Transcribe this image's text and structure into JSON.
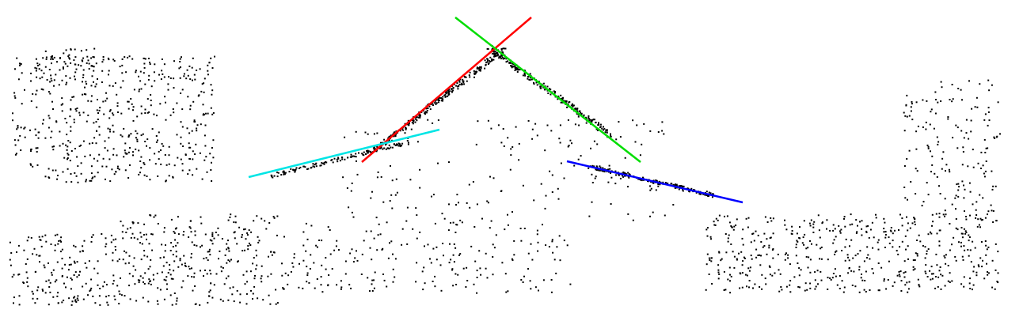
{
  "scene": {
    "background": "#ffffff",
    "point_color": "#000000",
    "description_type": "point-cloud-with-fitted-lines"
  },
  "lines": [
    {
      "id": "red",
      "color": "#ff0000"
    },
    {
      "id": "green",
      "color": "#00dd00"
    },
    {
      "id": "cyan",
      "color": "#00e5e5"
    },
    {
      "id": "blue",
      "color": "#0000ff"
    }
  ]
}
